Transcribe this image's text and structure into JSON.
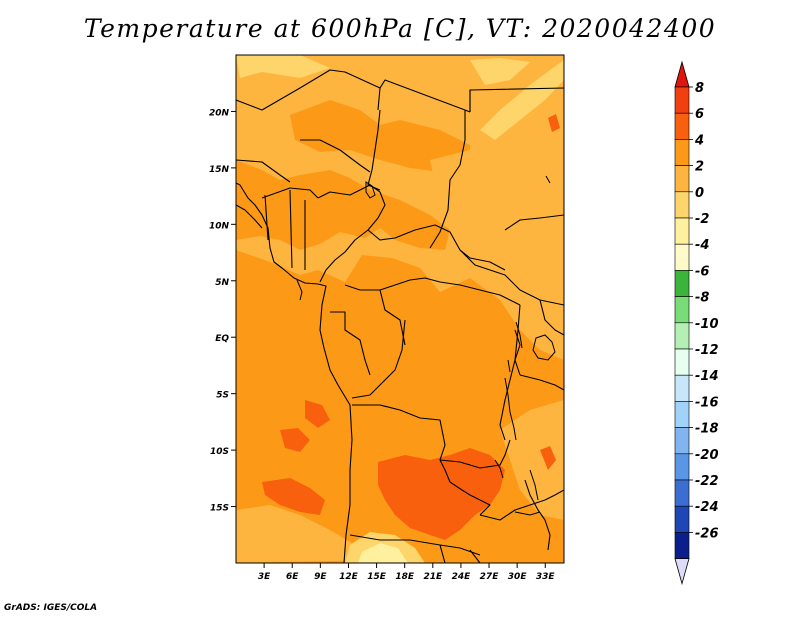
{
  "title": "Temperature at 600hPa [C], VT: 2020042400",
  "footer": "GrADS: IGES/COLA",
  "map": {
    "lon_range": [
      0,
      35
    ],
    "lat_range": [
      -20,
      25
    ],
    "lat_ticks": [
      {
        "value": 20,
        "label": "20N"
      },
      {
        "value": 15,
        "label": "15N"
      },
      {
        "value": 10,
        "label": "10N"
      },
      {
        "value": 5,
        "label": "5N"
      },
      {
        "value": 0,
        "label": "EQ"
      },
      {
        "value": -5,
        "label": "5S"
      },
      {
        "value": -10,
        "label": "10S"
      },
      {
        "value": -15,
        "label": "15S"
      }
    ],
    "lon_ticks": [
      {
        "value": 3,
        "label": "3E"
      },
      {
        "value": 6,
        "label": "6E"
      },
      {
        "value": 9,
        "label": "9E"
      },
      {
        "value": 12,
        "label": "12E"
      },
      {
        "value": 15,
        "label": "15E"
      },
      {
        "value": 18,
        "label": "18E"
      },
      {
        "value": 21,
        "label": "21E"
      },
      {
        "value": 24,
        "label": "24E"
      },
      {
        "value": 27,
        "label": "27E"
      },
      {
        "value": 30,
        "label": "30E"
      },
      {
        "value": 33,
        "label": "33E"
      }
    ]
  },
  "colorbar": {
    "labels": [
      "8",
      "6",
      "4",
      "2",
      "0",
      "-2",
      "-4",
      "-6",
      "-8",
      "-10",
      "-12",
      "-14",
      "-16",
      "-18",
      "-20",
      "-22",
      "-24",
      "-26"
    ],
    "top_triangle_color": "#e0150d",
    "bottom_triangle_color": "#dcdcf8",
    "segments": [
      {
        "color": "#f04010"
      },
      {
        "color": "#f8600d"
      },
      {
        "color": "#fc9a18"
      },
      {
        "color": "#fdb540"
      },
      {
        "color": "#fed56a"
      },
      {
        "color": "#fff09e"
      },
      {
        "color": "#fffac8"
      },
      {
        "color": "#3cb43c"
      },
      {
        "color": "#78dc78"
      },
      {
        "color": "#b4f0b4"
      },
      {
        "color": "#e6fff0"
      },
      {
        "color": "#c8e6fa"
      },
      {
        "color": "#a0d2fa"
      },
      {
        "color": "#82b4f0"
      },
      {
        "color": "#5a96e6"
      },
      {
        "color": "#3c6ed2"
      },
      {
        "color": "#1e46b4"
      },
      {
        "color": "#0a1e8c"
      },
      {
        "color": "#000a50"
      }
    ]
  },
  "field_colors": {
    "lt0": "#fed56a",
    "c0_2": "#fdb540",
    "c2_4": "#fc9a18",
    "c4_6": "#f8600d",
    "c6_8": "#f04010",
    "c_neg2": "#fff09e"
  }
}
